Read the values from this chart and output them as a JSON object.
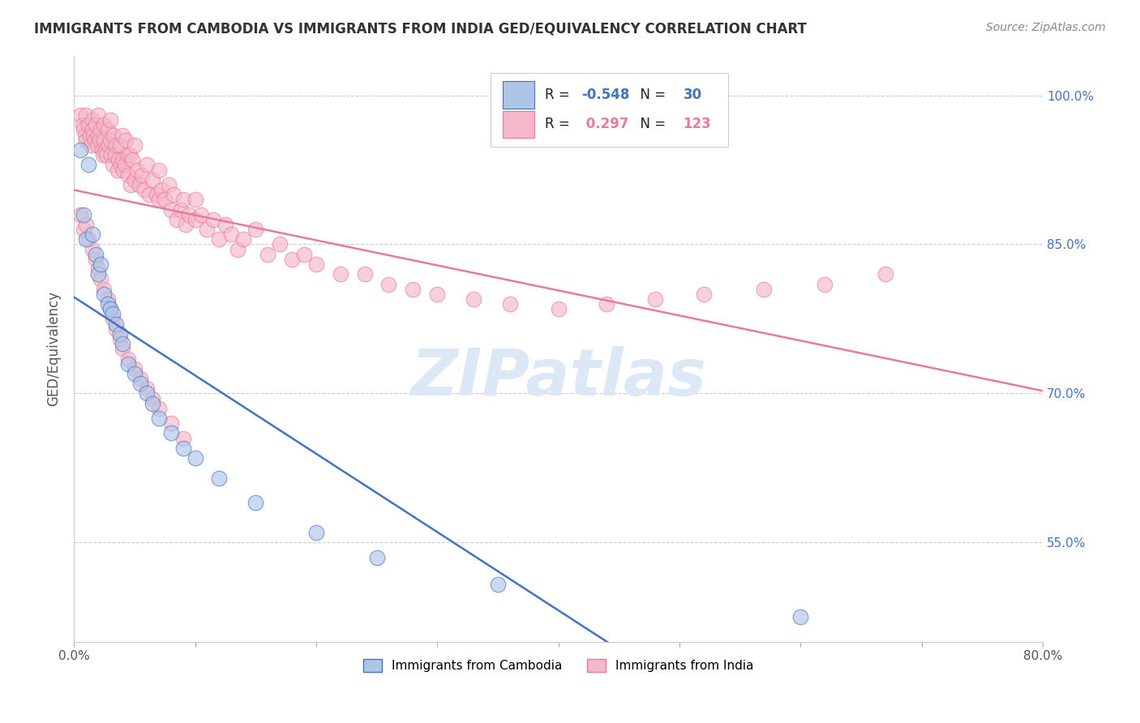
{
  "title": "IMMIGRANTS FROM CAMBODIA VS IMMIGRANTS FROM INDIA GED/EQUIVALENCY CORRELATION CHART",
  "source": "Source: ZipAtlas.com",
  "xlabel_cambodia": "Immigrants from Cambodia",
  "xlabel_india": "Immigrants from India",
  "ylabel": "GED/Equivalency",
  "xlim": [
    0.0,
    0.8
  ],
  "ylim": [
    0.45,
    1.04
  ],
  "yticks": [
    0.55,
    0.7,
    0.85,
    1.0
  ],
  "yticklabels": [
    "55.0%",
    "70.0%",
    "85.0%",
    "100.0%"
  ],
  "R_cambodia": -0.548,
  "N_cambodia": 30,
  "R_india": 0.297,
  "N_india": 123,
  "color_cambodia": "#adc6e8",
  "color_india": "#f5b8c8",
  "edge_color_cambodia": "#4472c4",
  "edge_color_india": "#e87a9a",
  "line_color_cambodia": "#4472c4",
  "line_color_india": "#e87a9a",
  "watermark_color": "#dce8f5",
  "cambodia_x": [
    0.005,
    0.008,
    0.01,
    0.012,
    0.015,
    0.018,
    0.02,
    0.022,
    0.025,
    0.028,
    0.03,
    0.032,
    0.035,
    0.038,
    0.04,
    0.045,
    0.05,
    0.055,
    0.06,
    0.065,
    0.07,
    0.08,
    0.09,
    0.1,
    0.12,
    0.15,
    0.2,
    0.25,
    0.35,
    0.6
  ],
  "cambodia_y": [
    0.945,
    0.88,
    0.855,
    0.93,
    0.86,
    0.84,
    0.82,
    0.83,
    0.8,
    0.79,
    0.785,
    0.78,
    0.77,
    0.76,
    0.75,
    0.73,
    0.72,
    0.71,
    0.7,
    0.69,
    0.675,
    0.66,
    0.645,
    0.635,
    0.615,
    0.59,
    0.56,
    0.535,
    0.508,
    0.475
  ],
  "india_x_cluster1": [
    0.005,
    0.007,
    0.008,
    0.009,
    0.01,
    0.01,
    0.012,
    0.013,
    0.014,
    0.015,
    0.015,
    0.016,
    0.017,
    0.018,
    0.019,
    0.02,
    0.02,
    0.021,
    0.022,
    0.023,
    0.024,
    0.025,
    0.025,
    0.026,
    0.027,
    0.028,
    0.029,
    0.03,
    0.03,
    0.031,
    0.032,
    0.033,
    0.034,
    0.035,
    0.036,
    0.037,
    0.038,
    0.039,
    0.04,
    0.04,
    0.041,
    0.042,
    0.043,
    0.044,
    0.045,
    0.046,
    0.047,
    0.048,
    0.05,
    0.05,
    0.052,
    0.054,
    0.056,
    0.058,
    0.06,
    0.062,
    0.065,
    0.068,
    0.07,
    0.07,
    0.072,
    0.075,
    0.078,
    0.08,
    0.082,
    0.085,
    0.088,
    0.09,
    0.092,
    0.095,
    0.1,
    0.1,
    0.105,
    0.11,
    0.115,
    0.12,
    0.125,
    0.13,
    0.135,
    0.14,
    0.15,
    0.16,
    0.17,
    0.18,
    0.19,
    0.2,
    0.22,
    0.24,
    0.26,
    0.28,
    0.3,
    0.33,
    0.36,
    0.4,
    0.44,
    0.48,
    0.52,
    0.57,
    0.62,
    0.67,
    0.005,
    0.008,
    0.01,
    0.012,
    0.015,
    0.018,
    0.02,
    0.022,
    0.025,
    0.028,
    0.03,
    0.032,
    0.035,
    0.038,
    0.04,
    0.045,
    0.05,
    0.055,
    0.06,
    0.065,
    0.07,
    0.08,
    0.09
  ],
  "india_y_cluster1": [
    0.98,
    0.97,
    0.965,
    0.96,
    0.98,
    0.955,
    0.97,
    0.96,
    0.95,
    0.975,
    0.965,
    0.96,
    0.955,
    0.97,
    0.95,
    0.98,
    0.96,
    0.955,
    0.965,
    0.945,
    0.94,
    0.97,
    0.955,
    0.945,
    0.94,
    0.965,
    0.95,
    0.975,
    0.955,
    0.94,
    0.93,
    0.96,
    0.94,
    0.95,
    0.925,
    0.935,
    0.95,
    0.93,
    0.96,
    0.935,
    0.925,
    0.93,
    0.955,
    0.94,
    0.92,
    0.94,
    0.91,
    0.935,
    0.95,
    0.915,
    0.925,
    0.91,
    0.92,
    0.905,
    0.93,
    0.9,
    0.915,
    0.9,
    0.925,
    0.895,
    0.905,
    0.895,
    0.91,
    0.885,
    0.9,
    0.875,
    0.885,
    0.895,
    0.87,
    0.88,
    0.895,
    0.875,
    0.88,
    0.865,
    0.875,
    0.855,
    0.87,
    0.86,
    0.845,
    0.855,
    0.865,
    0.84,
    0.85,
    0.835,
    0.84,
    0.83,
    0.82,
    0.82,
    0.81,
    0.805,
    0.8,
    0.795,
    0.79,
    0.785,
    0.79,
    0.795,
    0.8,
    0.805,
    0.81,
    0.82,
    0.88,
    0.865,
    0.87,
    0.855,
    0.845,
    0.835,
    0.825,
    0.815,
    0.805,
    0.795,
    0.785,
    0.775,
    0.765,
    0.755,
    0.745,
    0.735,
    0.725,
    0.715,
    0.705,
    0.695,
    0.685,
    0.67,
    0.655
  ]
}
